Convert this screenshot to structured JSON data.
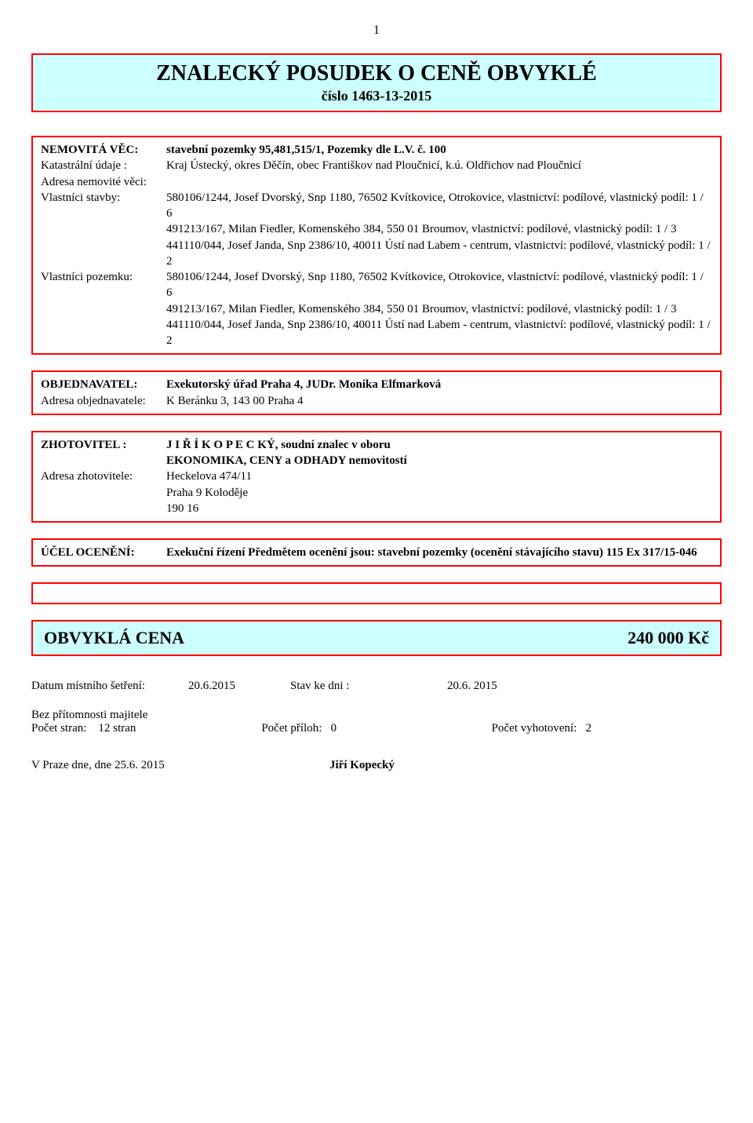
{
  "page_number": "1",
  "title": {
    "main": "ZNALECKÝ POSUDEK O CENĚ OBVYKLÉ",
    "sub": "číslo 1463-13-2015"
  },
  "nemovita": {
    "label_nemovita": "NEMOVITÁ VĚC:",
    "nemovita_value": "stavební pozemky 95,481,515/1, Pozemky dle L.V. č. 100",
    "label_katastr": "Katastrální údaje :",
    "katastr_value": "Kraj Ústecký, okres Děčín, obec Františkov nad Ploučnicí, k.ú. Oldřichov nad Ploučnicí",
    "label_adresa": "Adresa nemovité věci:",
    "label_vlastnici_stavby": "Vlastníci stavby:",
    "vlastnici_stavby_1": "580106/1244, Josef Dvorský, Snp 1180, 76502 Kvítkovice, Otrokovice, vlastnictví: podílové, vlastnický podíl: 1 / 6",
    "vlastnici_stavby_2": "491213/167, Milan Fiedler, Komenského 384, 550 01 Broumov, vlastnictví: podílové, vlastnický podíl: 1 / 3",
    "vlastnici_stavby_3": "441110/044, Josef Janda, Snp 2386/10, 40011 Ústí nad Labem - centrum, vlastnictví: podílové, vlastnický podíl: 1 / 2",
    "label_vlastnici_pozemku": "Vlastníci pozemku:",
    "vlastnici_pozemku_1": "580106/1244, Josef Dvorský, Snp 1180, 76502 Kvítkovice, Otrokovice, vlastnictví: podílové, vlastnický podíl: 1 / 6",
    "vlastnici_pozemku_2": "491213/167, Milan Fiedler, Komenského 384, 550 01 Broumov, vlastnictví: podílové, vlastnický podíl: 1 / 3",
    "vlastnici_pozemku_3": "441110/044, Josef Janda, Snp 2386/10, 40011 Ústí nad Labem - centrum, vlastnictví: podílové, vlastnický podíl: 1 / 2"
  },
  "objednavatel": {
    "label": "OBJEDNAVATEL:",
    "value": "Exekutorský úřad Praha 4, JUDr. Monika Elfmarková",
    "adresa_label": "Adresa objednavatele:",
    "adresa_value": "K Beránku 3, 143 00 Praha 4"
  },
  "zhotovitel": {
    "label": "ZHOTOVITEL :",
    "value_line1": "J I Ř Í  K O P E C KÝ, soudní  znalec v oboru",
    "value_line2": "EKONOMIKA, CENY a ODHADY nemovitostí",
    "adresa_label": "Adresa zhotovitele:",
    "adresa_line1": "Heckelova 474/11",
    "adresa_line2": "Praha 9 Koloděje",
    "adresa_line3": "190 16"
  },
  "ucel": {
    "label": "ÚČEL OCENĚNÍ:",
    "value": "Exekuční řízení Předmětem ocenění jsou: stavební pozemky (ocenění stávajícího stavu) 115 Ex 317/15-046"
  },
  "price": {
    "label": "OBVYKLÁ CENA",
    "value": "240 000 Kč"
  },
  "footer": {
    "datum_label": "Datum místního šetření:",
    "datum_value": "20.6.2015",
    "stav_label": "Stav ke dni :",
    "stav_value": "20.6. 2015",
    "bez_pritomnosti": "Bez přítomnosti majitele",
    "pocet_stran_label": "Počet stran:",
    "pocet_stran_value": "12 stran",
    "pocet_priloh_label": "Počet příloh:",
    "pocet_priloh_value": "0",
    "pocet_vyhotoveni_label": "Počet vyhotovení:",
    "pocet_vyhotoveni_value": "2",
    "signature_left": "V Praze dne, dne 25.6. 2015",
    "signature_right": "Jiří Kopecký"
  }
}
